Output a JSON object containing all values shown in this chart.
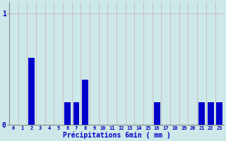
{
  "values": [
    0,
    0,
    0.6,
    0,
    0,
    0,
    0.2,
    0.2,
    0.4,
    0,
    0,
    0,
    0,
    0,
    0,
    0,
    0.2,
    0,
    0,
    0,
    0,
    0.2,
    0.2,
    0.2
  ],
  "bar_color": "#0000cc",
  "background_color": "#cce8e8",
  "xlabel": "Précipitations 6min ( mm )",
  "xlabel_color": "#0000cc",
  "ylim": [
    0,
    1.1
  ],
  "xlim": [
    -0.5,
    23.5
  ],
  "tick_color": "#0000bb",
  "axis_color": "#888888",
  "fig_bg": "#cce8e8",
  "gridline_color": "#d08888",
  "gridline_alpha": 0.6,
  "bar_width": 0.7
}
